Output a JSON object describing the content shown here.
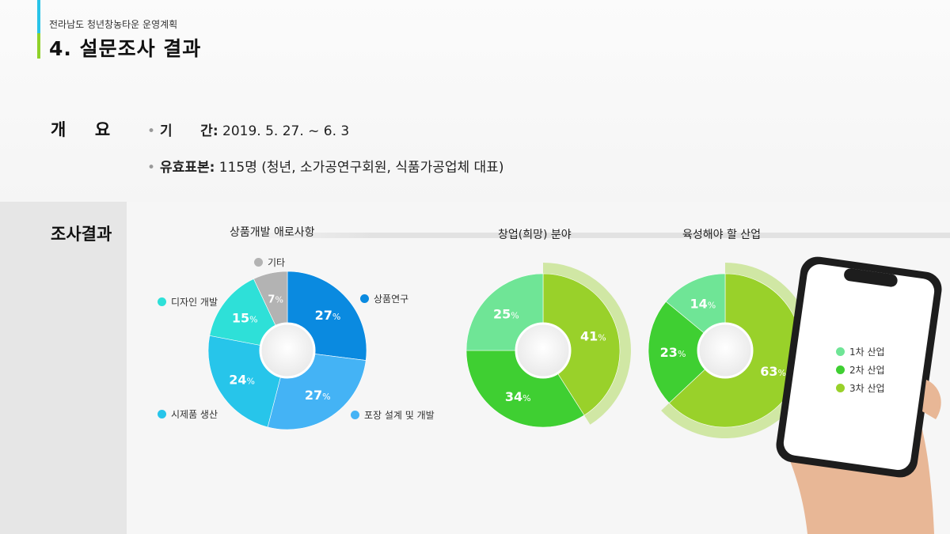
{
  "header": {
    "subtitle": "전라남도 청년창농타운 운영계획",
    "title": "4. 설문조사 결과"
  },
  "overview": {
    "label": "개     요",
    "period_key": "기      간:",
    "period_value": " 2019. 5. 27. ~ 6. 3",
    "sample_key": "유효표본:",
    "sample_value": " 115명 (청년, 소가공연구회원, 식품가공업체 대표)"
  },
  "results": {
    "label": "조사결과"
  },
  "colors": {
    "accent_cyan": "#29c3e8",
    "accent_green": "#8fd12a"
  },
  "chart_data": [
    {
      "type": "pie",
      "title": "상품개발 애로사항",
      "slices": [
        {
          "label": "상품연구",
          "value": 27,
          "color": "#0a8ae0"
        },
        {
          "label": "포장 설계 및 개발",
          "value": 27,
          "color": "#44b3f5"
        },
        {
          "label": "시제품 생산",
          "value": 24,
          "color": "#27c5ea"
        },
        {
          "label": "디자인 개발",
          "value": 15,
          "color": "#2ee0d8"
        },
        {
          "label": "기타",
          "value": 7,
          "color": "#b3b3b3"
        }
      ]
    },
    {
      "type": "pie",
      "title": "창업(희망) 분야",
      "slices": [
        {
          "label": "3차 산업",
          "value": 41,
          "color": "#99d12a"
        },
        {
          "label": "2차 산업",
          "value": 34,
          "color": "#3fcf32"
        },
        {
          "label": "1차 산업",
          "value": 25,
          "color": "#6fe596"
        }
      ],
      "highlight": "3차 산업"
    },
    {
      "type": "pie",
      "title": "육성해야 할 산업",
      "slices": [
        {
          "label": "3차 산업",
          "value": 63,
          "color": "#99d12a"
        },
        {
          "label": "2차 산업",
          "value": 23,
          "color": "#3fcf32"
        },
        {
          "label": "1차 산업",
          "value": 14,
          "color": "#6fe596"
        }
      ],
      "highlight": "3차 산업",
      "legend": [
        {
          "label": "1차 산업",
          "color": "#6fe596"
        },
        {
          "label": "2차 산업",
          "color": "#3fcf32"
        },
        {
          "label": "3차 산업",
          "color": "#99d12a"
        }
      ]
    }
  ]
}
